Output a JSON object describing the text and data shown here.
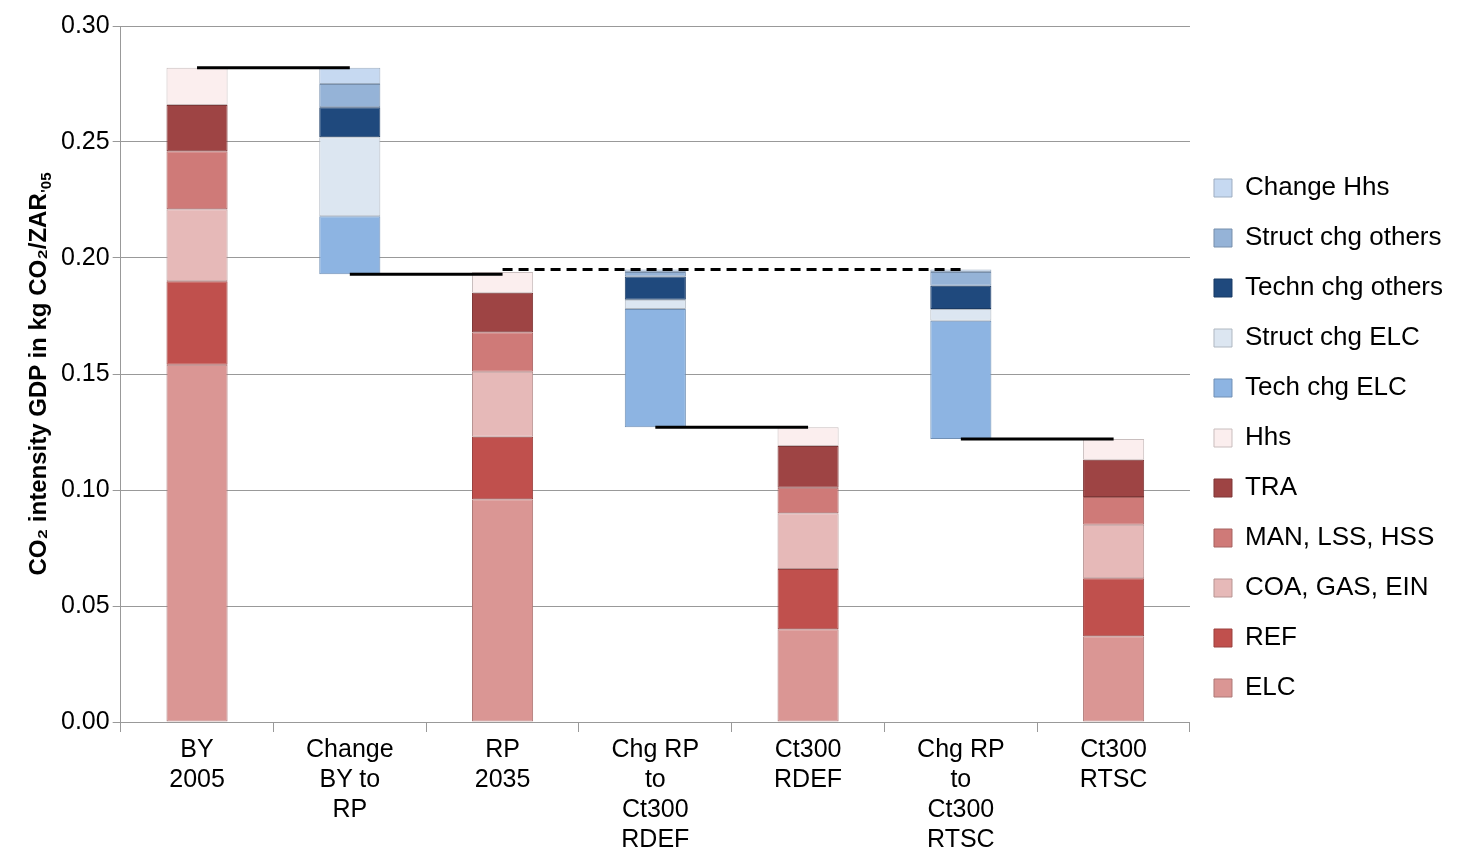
{
  "chart_data": {
    "type": "bar",
    "ylabel": "CO₂ intensity GDP in kg CO₂/ZAR$_{'05}$",
    "categories": [
      "BY 2005",
      "Change BY to RP",
      "RP 2035",
      "Chg RP to Ct300 RDEF",
      "Ct300 RDEF",
      "Chg RP to Ct300 RTSC",
      "Ct300 RTSC"
    ],
    "stacked": true,
    "series": [
      {
        "name": "ELC",
        "color": "#da9694",
        "values": [
          0.154,
          null,
          0.096,
          null,
          0.04,
          null,
          0.037
        ]
      },
      {
        "name": "REF",
        "color": "#c0504d",
        "values": [
          0.036,
          null,
          0.027,
          null,
          0.026,
          null,
          0.025
        ]
      },
      {
        "name": "COA, GAS, EIN",
        "color": "#e6b9b8",
        "values": [
          0.031,
          null,
          0.028,
          null,
          0.024,
          null,
          0.023
        ]
      },
      {
        "name": "MAN, LSS, HSS",
        "color": "#cf7a78",
        "values": [
          0.025,
          null,
          0.017,
          null,
          0.011,
          null,
          0.012
        ]
      },
      {
        "name": "TRA",
        "color": "#9e4444",
        "values": [
          0.02,
          null,
          0.017,
          null,
          0.018,
          null,
          0.016
        ]
      },
      {
        "name": "Hhs",
        "color": "#fbeeee",
        "values": [
          0.016,
          null,
          0.009,
          null,
          0.008,
          null,
          0.009
        ]
      },
      {
        "name": "Tech chg ELC",
        "color": "#8db4e2",
        "base": [
          null,
          0.193,
          null,
          0.127,
          null,
          0.122,
          null
        ],
        "values": [
          null,
          0.025,
          null,
          0.051,
          null,
          0.051,
          null
        ]
      },
      {
        "name": "Struct chg ELC",
        "color": "#dce6f1",
        "base": [
          null,
          0.218,
          null,
          0.178,
          null,
          0.173,
          null
        ],
        "values": [
          null,
          0.034,
          null,
          0.004,
          null,
          0.005,
          null
        ]
      },
      {
        "name": "Techn chg others",
        "color": "#1f497d",
        "base": [
          null,
          0.252,
          null,
          0.182,
          null,
          0.178,
          null
        ],
        "values": [
          null,
          0.013,
          null,
          0.01,
          null,
          0.01,
          null
        ]
      },
      {
        "name": "Struct chg others",
        "color": "#95b3d7",
        "base": [
          null,
          0.265,
          null,
          0.192,
          null,
          0.188,
          null
        ],
        "values": [
          null,
          0.01,
          null,
          0.002,
          null,
          0.006,
          null
        ]
      },
      {
        "name": "Change Hhs",
        "color": "#c6d9f1",
        "base": [
          null,
          0.275,
          null,
          0.194,
          null,
          0.194,
          null
        ],
        "values": [
          null,
          0.007,
          null,
          0.001,
          null,
          0.001,
          null
        ]
      },
      {
        "type": "line",
        "color": "#000000",
        "line_style": "solid",
        "marker": "none",
        "values": [
          0.282,
          0.282,
          null,
          null,
          null,
          null,
          null
        ]
      },
      {
        "type": "line",
        "color": "#000000",
        "line_style": "solid",
        "marker": "none",
        "values": [
          null,
          0.193,
          0.193,
          null,
          null,
          null,
          null
        ]
      },
      {
        "type": "line",
        "color": "#000000",
        "line_style": "dashed",
        "marker": "none",
        "values": [
          null,
          null,
          0.195,
          0.195,
          0.195,
          0.195,
          null
        ]
      },
      {
        "type": "line",
        "color": "#000000",
        "line_style": "solid",
        "marker": "none",
        "values": [
          null,
          null,
          null,
          0.127,
          0.127,
          null,
          null
        ]
      },
      {
        "type": "line",
        "color": "#000000",
        "line_style": "solid",
        "marker": "none",
        "values": [
          null,
          null,
          null,
          null,
          null,
          0.122,
          0.122
        ]
      }
    ],
    "ylim": [
      0,
      0.3
    ],
    "yticks": [
      {
        "value": 0,
        "label": "0.00"
      },
      {
        "value": 0.05,
        "label": "0.05"
      },
      {
        "value": 0.1,
        "label": "0.10"
      },
      {
        "value": 0.15,
        "label": "0.15"
      },
      {
        "value": 0.2,
        "label": "0.20"
      },
      {
        "value": 0.25,
        "label": "0.25"
      },
      {
        "value": 0.3,
        "label": "0.30"
      }
    ],
    "grid": "y",
    "legend": "right"
  }
}
